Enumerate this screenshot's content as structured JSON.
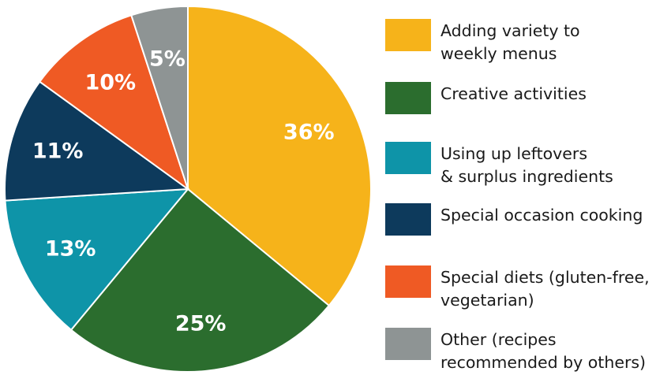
{
  "chart_data": {
    "type": "pie",
    "slices": [
      {
        "label": "Adding variety to\nweekly menus",
        "value": 36,
        "value_label": "36%",
        "color": "#F6B31A"
      },
      {
        "label": "Creative activities",
        "value": 25,
        "value_label": "25%",
        "color": "#2B6D2E"
      },
      {
        "label": "Using up leftovers\n& surplus ingredients",
        "value": 13,
        "value_label": "13%",
        "color": "#0E94A8"
      },
      {
        "label": "Special occasion cooking",
        "value": 11,
        "value_label": "11%",
        "color": "#0D3A5C"
      },
      {
        "label": "Special diets (gluten-free,\nvegetarian)",
        "value": 10,
        "value_label": "10%",
        "color": "#EF5A24"
      },
      {
        "label": "Other (recipes\nrecommended by others)",
        "value": 5,
        "value_label": "5%",
        "color": "#8E9494"
      }
    ],
    "legend_position": "right",
    "start_angle": "12 o'clock",
    "direction": "clockwise"
  }
}
